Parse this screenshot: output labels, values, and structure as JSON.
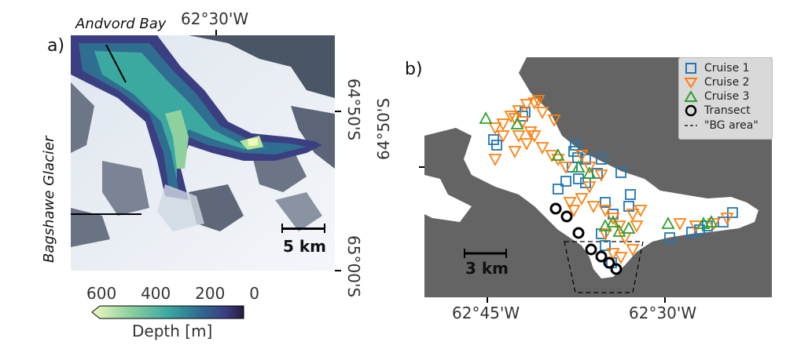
{
  "panels": {
    "a": {
      "label": "a)",
      "place_labels": [
        "Andvord Bay",
        "Bagshawe Glacier"
      ],
      "top_tick": "62°30'W",
      "right_ticks": [
        "64°50'S",
        "65°00'S"
      ],
      "scale_bar": "5 km",
      "colorbar": {
        "title": "Depth [m]",
        "ticks": [
          "600",
          "400",
          "200",
          "0"
        ],
        "colors": [
          "#f0f9c0",
          "#8ed19f",
          "#3ba9a0",
          "#2f6e91",
          "#3b3f82",
          "#281c3a"
        ]
      }
    },
    "b": {
      "label": "b)",
      "left_tick": "64°50'S",
      "bottom_ticks": [
        "62°45'W",
        "62°30'W"
      ],
      "scale_bar": "3 km",
      "legend": [
        {
          "label": "Cruise 1",
          "marker": "square",
          "color": "#1f77b4"
        },
        {
          "label": "Cruise 2",
          "marker": "triangle-down",
          "color": "#ff7f0e"
        },
        {
          "label": "Cruise 3",
          "marker": "triangle-up",
          "color": "#2ca02c"
        },
        {
          "label": "Transect",
          "marker": "circle",
          "color": "#000000"
        },
        {
          "label": "\"BG area\"",
          "marker": "dashed-line",
          "color": "#000000"
        }
      ],
      "land_color": "#646464",
      "water_color": "#ffffff"
    }
  }
}
